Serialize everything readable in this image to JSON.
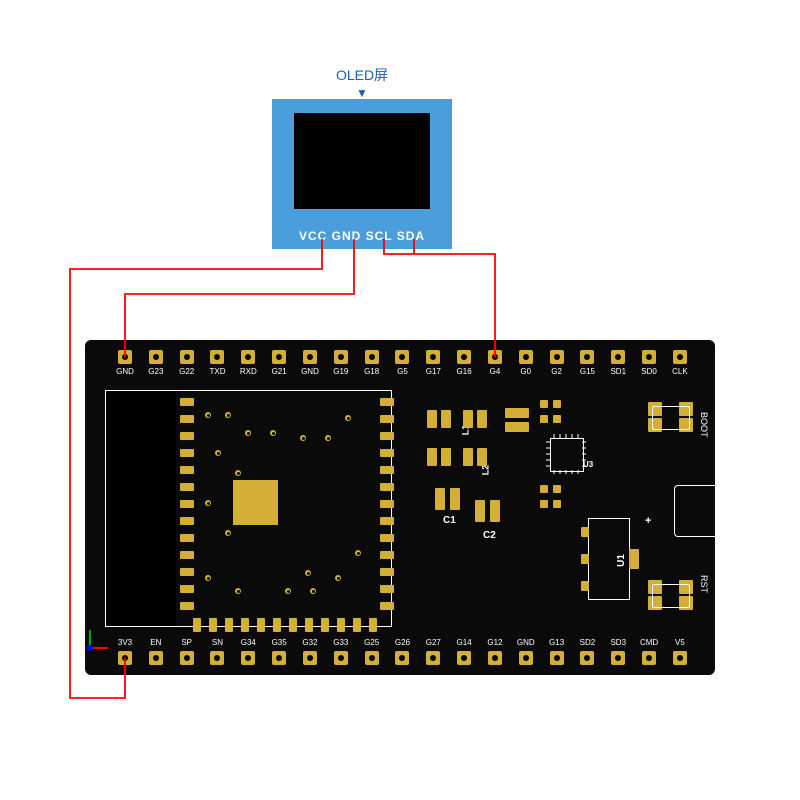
{
  "title": "OLED屏",
  "oled": {
    "pin_labels": "VCC GND SCL SDA",
    "module_color": "#4a9edb",
    "screen_color": "#000000",
    "title_color": "#1a5fb4"
  },
  "pcb": {
    "bg": "#0a0a0a",
    "pad_color": "#d4af37",
    "silk_color": "#ffffff",
    "top_pins": [
      "GND",
      "G23",
      "G22",
      "TXD",
      "RXD",
      "G21",
      "GND",
      "G19",
      "G18",
      "G5",
      "G17",
      "G16",
      "G4",
      "G0",
      "G2",
      "G15",
      "SD1",
      "SD0",
      "CLK"
    ],
    "bottom_pins": [
      "3V3",
      "EN",
      "SP",
      "SN",
      "G34",
      "G35",
      "G32",
      "G33",
      "G25",
      "G26",
      "G27",
      "G14",
      "G12",
      "GND",
      "G13",
      "SD2",
      "SD3",
      "CMD",
      "V5"
    ],
    "labels": {
      "c1": "C1",
      "c2": "C2",
      "u1": "U1",
      "u3": "U3",
      "l1": "L1",
      "l2": "L2",
      "boot": "BOOT",
      "rst": "RST",
      "plus": "+"
    }
  },
  "wires": {
    "color": "#ff0000",
    "width": 1.8,
    "connections": [
      {
        "from_oled": "VCC",
        "to_pin": "3V3"
      },
      {
        "from_oled": "GND",
        "to_pin": "GND"
      },
      {
        "from_oled": "SCL",
        "to_pin": "G4"
      },
      {
        "from_oled": "SDA",
        "to_pin": "G5"
      }
    ]
  },
  "axis": {
    "x_color": "#ff0000",
    "y_color": "#00aa00",
    "z_color": "#0000ff"
  }
}
